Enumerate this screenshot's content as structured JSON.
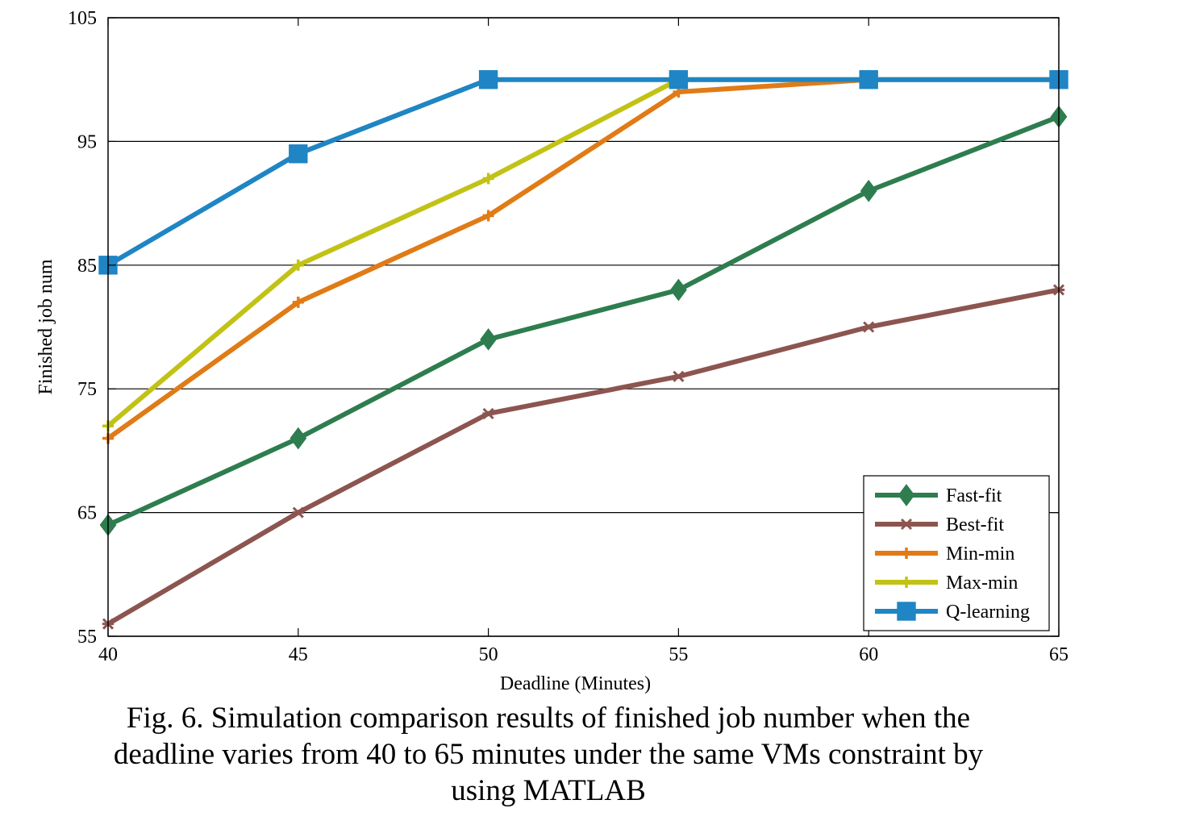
{
  "chart_data": {
    "type": "line",
    "xlabel": "Deadline (Minutes)",
    "ylabel": "Finished job num",
    "x": [
      40,
      45,
      50,
      55,
      60,
      65
    ],
    "xticks": [
      "40",
      "45",
      "50",
      "55",
      "60",
      "65"
    ],
    "yticks": [
      "55",
      "65",
      "75",
      "85",
      "95",
      "105"
    ],
    "xlim": [
      40,
      65
    ],
    "ylim": [
      55,
      105
    ],
    "grid": "horizontal",
    "legend_position": "bottom-right",
    "series": [
      {
        "name": "Fast-fit",
        "color": "#2e7d4f",
        "marker": "diamond",
        "values": [
          64,
          71,
          79,
          83,
          91,
          97
        ]
      },
      {
        "name": "Best-fit",
        "color": "#8c5550",
        "marker": "star",
        "values": [
          56,
          65,
          73,
          76,
          80,
          83
        ]
      },
      {
        "name": "Min-min",
        "color": "#e07b16",
        "marker": "plus",
        "values": [
          71,
          82,
          89,
          99,
          100,
          100
        ]
      },
      {
        "name": "Max-min",
        "color": "#c2c216",
        "marker": "plus",
        "values": [
          72,
          85,
          92,
          100,
          100,
          100
        ]
      },
      {
        "name": "Q-learning",
        "color": "#1f85c4",
        "marker": "square",
        "values": [
          85,
          94,
          100,
          100,
          100,
          100
        ]
      }
    ]
  },
  "caption": {
    "line1": "Fig. 6. Simulation comparison results of finished job number when the",
    "line2": "deadline varies from 40 to 65 minutes under the same VMs constraint by",
    "line3": "using MATLAB"
  }
}
